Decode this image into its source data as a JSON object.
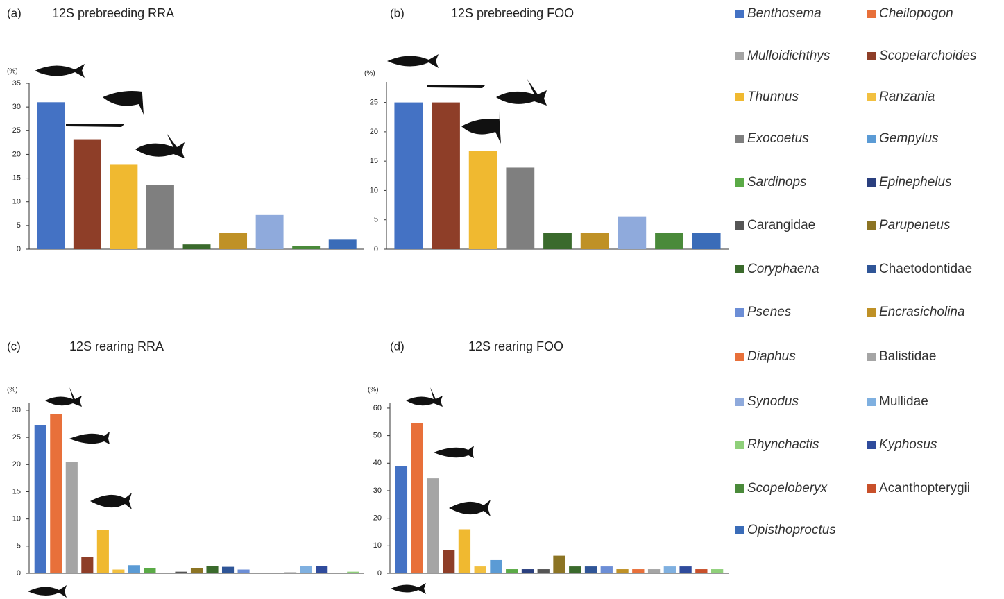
{
  "chart_data": [
    {
      "type": "bar",
      "panel_label": "(a)",
      "title": "12S prebreeding RRA",
      "unit_label": "(%)",
      "values": [
        31,
        23.2,
        17.8,
        13.5,
        1.0,
        3.4,
        7.2,
        0.6,
        2.0
      ],
      "colors": [
        "#4472c4",
        "#8e3e28",
        "#f0b930",
        "#7f7f7f",
        "#3a6a2c",
        "#bf9126",
        "#8faadc",
        "#4a8a3a",
        "#3a6cb8"
      ],
      "ylim": [
        0,
        35
      ],
      "yticks": [
        0,
        5,
        10,
        15,
        20,
        25,
        30,
        35
      ]
    },
    {
      "type": "bar",
      "panel_label": "(b)",
      "title": "12S prebreeding FOO",
      "unit_label": "(%)",
      "values": [
        25,
        25,
        16.7,
        13.9,
        2.8,
        2.8,
        5.6,
        2.8,
        2.8
      ],
      "colors": [
        "#4472c4",
        "#8e3e28",
        "#f0b930",
        "#7f7f7f",
        "#3a6a2c",
        "#bf9126",
        "#8faadc",
        "#4a8a3a",
        "#3a6cb8"
      ],
      "ylim": [
        0,
        28.5
      ],
      "yticks": [
        0,
        5,
        10,
        15,
        20,
        25
      ]
    },
    {
      "type": "bar",
      "panel_label": "(c)",
      "title": "12S rearing RRA",
      "unit_label": "(%)",
      "values": [
        27.2,
        29.3,
        20.5,
        3.0,
        8.0,
        0.7,
        1.5,
        0.9,
        0.1,
        0.3,
        0.9,
        1.4,
        1.2,
        0.7,
        0.1,
        0.1,
        0.2,
        1.3,
        1.3,
        0.1,
        0.3
      ],
      "colors": [
        "#4472c4",
        "#e8703a",
        "#a5a5a5",
        "#8e3e28",
        "#f0b930",
        "#f2c040",
        "#5b9bd5",
        "#5aaa46",
        "#2a3f7e",
        "#555555",
        "#8c7424",
        "#3a6a2c",
        "#2f5597",
        "#6c8ed6",
        "#bf9126",
        "#e8703a",
        "#a5a5a5",
        "#7fb0e0",
        "#2f4b9c",
        "#c8502a",
        "#8fd07a"
      ],
      "ylim": [
        0,
        31.4
      ],
      "yticks": [
        0,
        5,
        10,
        15,
        20,
        25,
        30
      ]
    },
    {
      "type": "bar",
      "panel_label": "(d)",
      "title": "12S rearing FOO",
      "unit_label": "(%)",
      "values": [
        39,
        54.5,
        34.5,
        8.5,
        16,
        2.5,
        4.8,
        1.5,
        1.5,
        1.5,
        6.4,
        2.5,
        2.5,
        2.5,
        1.5,
        1.5,
        1.5,
        2.5,
        2.5,
        1.5,
        1.5
      ],
      "colors": [
        "#4472c4",
        "#e8703a",
        "#a5a5a5",
        "#8e3e28",
        "#f0b930",
        "#f2c040",
        "#5b9bd5",
        "#5aaa46",
        "#2a3f7e",
        "#555555",
        "#8c7424",
        "#3a6a2c",
        "#2f5597",
        "#6c8ed6",
        "#bf9126",
        "#e8703a",
        "#a5a5a5",
        "#7fb0e0",
        "#2f4b9c",
        "#c8502a",
        "#8fd07a"
      ],
      "ylim": [
        0,
        62
      ],
      "yticks": [
        0,
        10,
        20,
        30,
        40,
        50,
        60
      ]
    }
  ],
  "legend": [
    {
      "name": "Benthosema",
      "color": "#4472c4",
      "italic": true
    },
    {
      "name": "Cheilopogon",
      "color": "#e8703a",
      "italic": true
    },
    {
      "name": "Mulloidichthys",
      "color": "#a5a5a5",
      "italic": true
    },
    {
      "name": "Scopelarchoides",
      "color": "#8e3e28",
      "italic": true
    },
    {
      "name": "Thunnus",
      "color": "#f0b930",
      "italic": true
    },
    {
      "name": "Ranzania",
      "color": "#f2c040",
      "italic": true
    },
    {
      "name": "Exocoetus",
      "color": "#7f7f7f",
      "italic": true
    },
    {
      "name": "Gempylus",
      "color": "#5b9bd5",
      "italic": true
    },
    {
      "name": "Sardinops",
      "color": "#5aaa46",
      "italic": true
    },
    {
      "name": "Epinephelus",
      "color": "#2a3f7e",
      "italic": true
    },
    {
      "name": "Carangidae",
      "color": "#555555",
      "italic": false
    },
    {
      "name": "Parupeneus",
      "color": "#8c7424",
      "italic": true
    },
    {
      "name": "Coryphaena",
      "color": "#3a6a2c",
      "italic": true
    },
    {
      "name": "Chaetodontidae",
      "color": "#2f5597",
      "italic": false
    },
    {
      "name": "Psenes",
      "color": "#6c8ed6",
      "italic": true
    },
    {
      "name": "Encrasicholina",
      "color": "#bf9126",
      "italic": true
    },
    {
      "name": "Diaphus",
      "color": "#e8703a",
      "italic": true
    },
    {
      "name": "Balistidae",
      "color": "#a5a5a5",
      "italic": false
    },
    {
      "name": "Synodus",
      "color": "#8faadc",
      "italic": true
    },
    {
      "name": "Mullidae",
      "color": "#7fb0e0",
      "italic": false
    },
    {
      "name": "Rhynchactis",
      "color": "#8fd07a",
      "italic": true
    },
    {
      "name": "Kyphosus",
      "color": "#2f4b9c",
      "italic": true
    },
    {
      "name": "Scopeloberyx",
      "color": "#4a8a3a",
      "italic": true
    },
    {
      "name": "Acanthopterygii",
      "color": "#c8502a",
      "italic": false
    },
    {
      "name": "Opisthoproctus",
      "color": "#3a6cb8",
      "italic": true
    }
  ]
}
